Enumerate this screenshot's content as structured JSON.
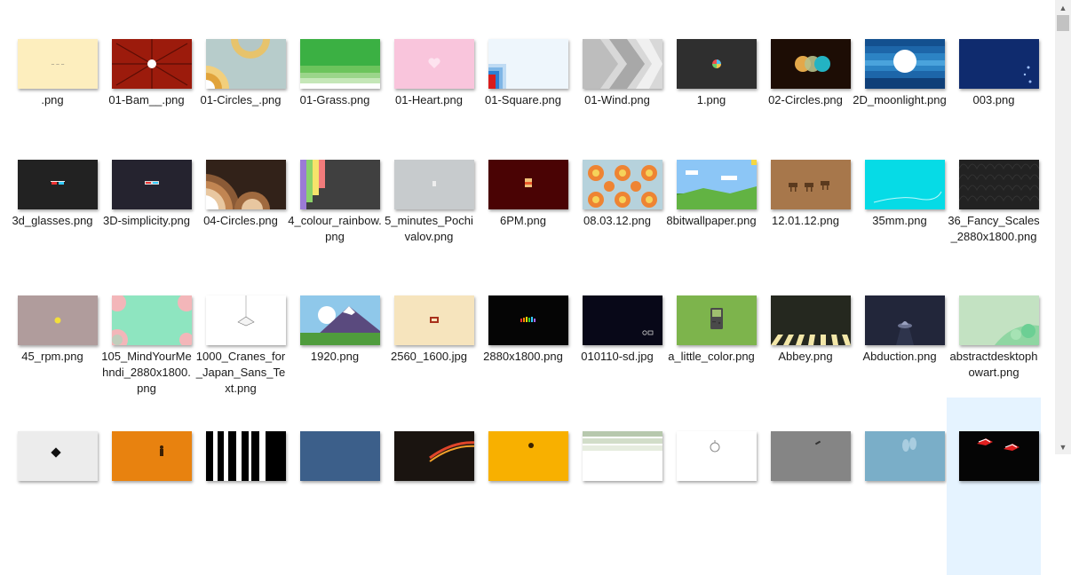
{
  "files": [
    {
      "name": ".png",
      "thumb": "text-beige"
    },
    {
      "name": "01-Bam__.png",
      "thumb": "bam"
    },
    {
      "name": "01-Circles_.png",
      "thumb": "circles"
    },
    {
      "name": "01-Grass.png",
      "thumb": "grass"
    },
    {
      "name": "01-Heart.png",
      "thumb": "heart"
    },
    {
      "name": "01-Square.png",
      "thumb": "square"
    },
    {
      "name": "01-Wind.png",
      "thumb": "wind"
    },
    {
      "name": "1.png",
      "thumb": "dark-ball"
    },
    {
      "name": "02-Circles.png",
      "thumb": "circles2"
    },
    {
      "name": "2D_moonlight.png",
      "thumb": "moonlight"
    },
    {
      "name": "003.png",
      "thumb": "navy"
    },
    {
      "name": "3d_glasses.png",
      "thumb": "glasses"
    },
    {
      "name": "3D-simplicity.png",
      "thumb": "glasses2"
    },
    {
      "name": "04-Circles.png",
      "thumb": "circles3"
    },
    {
      "name": "4_colour_rainbow.png",
      "thumb": "rainbow"
    },
    {
      "name": "5_minutes_Pochivalov.png",
      "thumb": "grey-small"
    },
    {
      "name": "6PM.png",
      "thumb": "sixpm"
    },
    {
      "name": "08.03.12.png",
      "thumb": "flowers"
    },
    {
      "name": "8bitwallpaper.png",
      "thumb": "eightbit"
    },
    {
      "name": "12.01.12.png",
      "thumb": "camels"
    },
    {
      "name": "35mm.png",
      "thumb": "cyan"
    },
    {
      "name": "36_Fancy_Scales_2880x1800.png",
      "thumb": "scales"
    },
    {
      "name": "45_rpm.png",
      "thumb": "rpm"
    },
    {
      "name": "105_MindYourMehndi_2880x1800.png",
      "thumb": "mehndi"
    },
    {
      "name": "1000_Cranes_for_Japan_Sans_Text.png",
      "thumb": "crane"
    },
    {
      "name": "1920.png",
      "thumb": "mountain"
    },
    {
      "name": "2560_1600.jpg",
      "thumb": "beige-radio"
    },
    {
      "name": "2880x1800.png",
      "thumb": "black-bars"
    },
    {
      "name": "010110-sd.jpg",
      "thumb": "navy-dark"
    },
    {
      "name": "a_little_color.png",
      "thumb": "gameboy"
    },
    {
      "name": "Abbey.png",
      "thumb": "abbey"
    },
    {
      "name": "Abduction.png",
      "thumb": "ufo"
    },
    {
      "name": "abstractdesktophowart.png",
      "thumb": "abstract"
    },
    {
      "name": "",
      "thumb": "r4-1"
    },
    {
      "name": "",
      "thumb": "r4-2"
    },
    {
      "name": "",
      "thumb": "r4-3"
    },
    {
      "name": "",
      "thumb": "r4-4"
    },
    {
      "name": "",
      "thumb": "r4-5"
    },
    {
      "name": "",
      "thumb": "r4-6"
    },
    {
      "name": "",
      "thumb": "r4-7"
    },
    {
      "name": "",
      "thumb": "r4-8"
    },
    {
      "name": "",
      "thumb": "r4-9"
    },
    {
      "name": "",
      "thumb": "r4-10"
    },
    {
      "name": "",
      "thumb": "r4-11"
    }
  ],
  "scrollbar": {
    "up_icon": "chevron-up-icon",
    "down_icon": "chevron-down-icon"
  }
}
